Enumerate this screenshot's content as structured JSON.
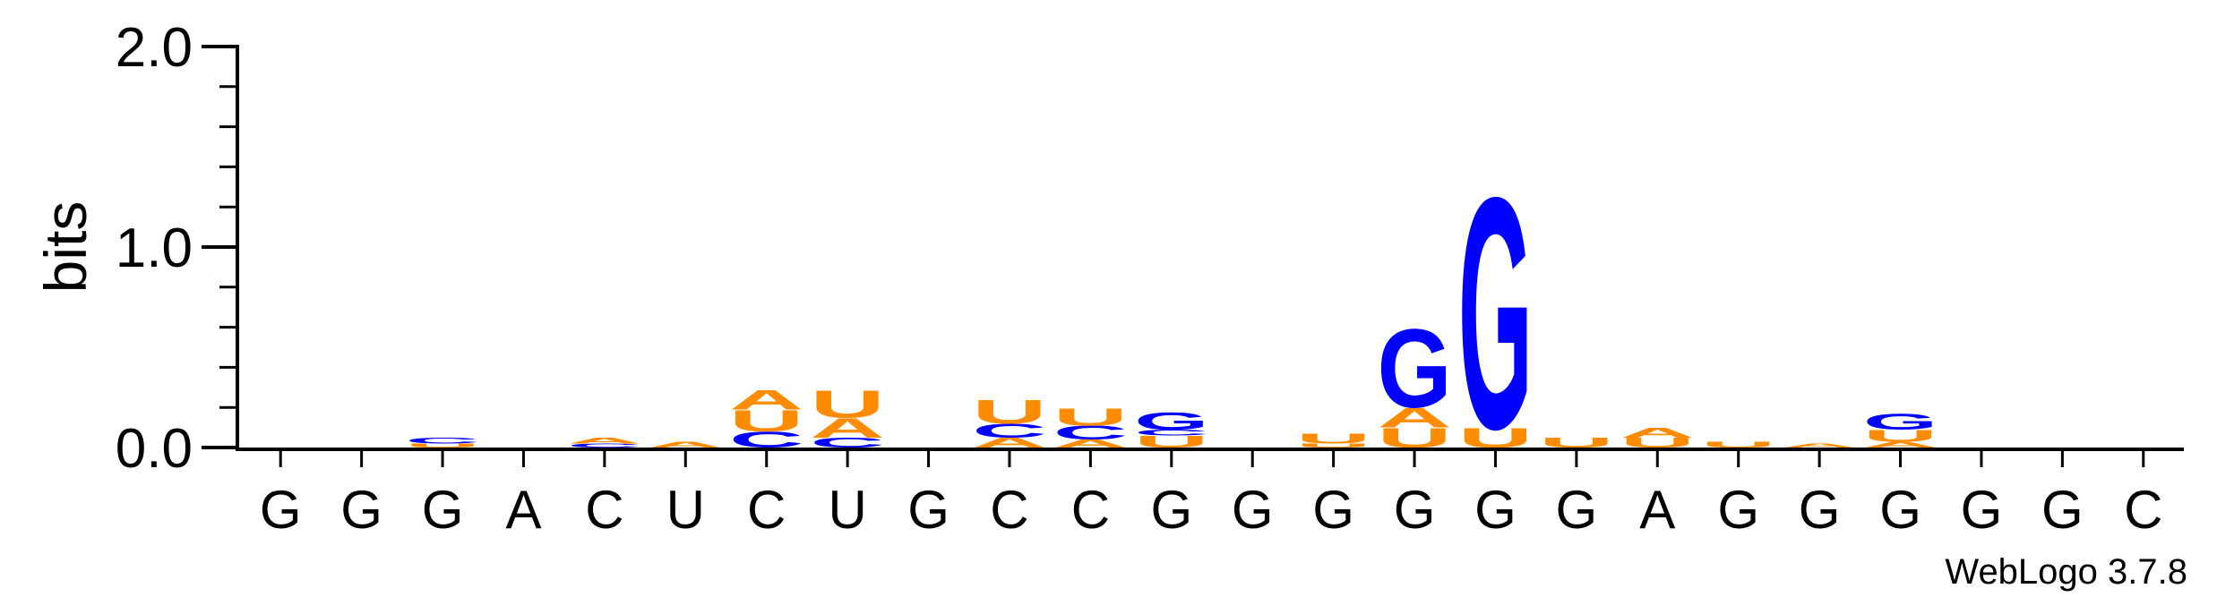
{
  "chart_data": {
    "type": "sequence-logo",
    "ylabel": "bits",
    "ylim": [
      0,
      2.0
    ],
    "yticks": [
      {
        "value": 0.0,
        "label": "0.0"
      },
      {
        "value": 1.0,
        "label": "1.0"
      },
      {
        "value": 2.0,
        "label": "2.0"
      }
    ],
    "x_labels": [
      "G",
      "G",
      "G",
      "A",
      "C",
      "U",
      "C",
      "U",
      "G",
      "C",
      "C",
      "G",
      "G",
      "G",
      "G",
      "G",
      "G",
      "A",
      "G",
      "G",
      "G",
      "G",
      "G",
      "C"
    ],
    "positions": [
      [],
      [],
      [
        {
          "l": "U",
          "v": 0.02
        },
        {
          "l": "C",
          "v": 0.03
        }
      ],
      [],
      [
        {
          "l": "C",
          "v": 0.02
        },
        {
          "l": "A",
          "v": 0.03
        }
      ],
      [
        {
          "l": "A",
          "v": 0.03
        }
      ],
      [
        {
          "l": "C",
          "v": 0.08
        },
        {
          "l": "U",
          "v": 0.11
        },
        {
          "l": "A",
          "v": 0.1
        }
      ],
      [
        {
          "l": "C",
          "v": 0.05
        },
        {
          "l": "A",
          "v": 0.1
        },
        {
          "l": "U",
          "v": 0.14
        }
      ],
      [],
      [
        {
          "l": "A",
          "v": 0.05
        },
        {
          "l": "C",
          "v": 0.07
        },
        {
          "l": "U",
          "v": 0.12
        }
      ],
      [
        {
          "l": "A",
          "v": 0.04
        },
        {
          "l": "C",
          "v": 0.07
        },
        {
          "l": "U",
          "v": 0.09
        }
      ],
      [
        {
          "l": "U",
          "v": 0.06
        },
        {
          "l": "C",
          "v": 0.03
        },
        {
          "l": "G",
          "v": 0.09
        }
      ],
      [],
      [
        {
          "l": "U",
          "v": 0.02
        },
        {
          "l": "U",
          "v": 0.05
        }
      ],
      [
        {
          "l": "U",
          "v": 0.1
        },
        {
          "l": "A",
          "v": 0.1
        },
        {
          "l": "G",
          "v": 0.4
        }
      ],
      [
        {
          "l": "U",
          "v": 0.1
        },
        {
          "l": "G",
          "v": 1.18
        }
      ],
      [
        {
          "l": "U",
          "v": 0.05
        }
      ],
      [
        {
          "l": "U",
          "v": 0.05
        },
        {
          "l": "A",
          "v": 0.05
        }
      ],
      [
        {
          "l": "U",
          "v": 0.03
        }
      ],
      [
        {
          "l": "A",
          "v": 0.02
        }
      ],
      [
        {
          "l": "A",
          "v": 0.03
        },
        {
          "l": "U",
          "v": 0.06
        },
        {
          "l": "G",
          "v": 0.08
        }
      ],
      [],
      [],
      []
    ],
    "colors": {
      "A": "#ff8c00",
      "U": "#ff8c00",
      "C": "#0000ff",
      "G": "#0000ff"
    }
  },
  "footer": {
    "credit": "WebLogo 3.7.8"
  }
}
